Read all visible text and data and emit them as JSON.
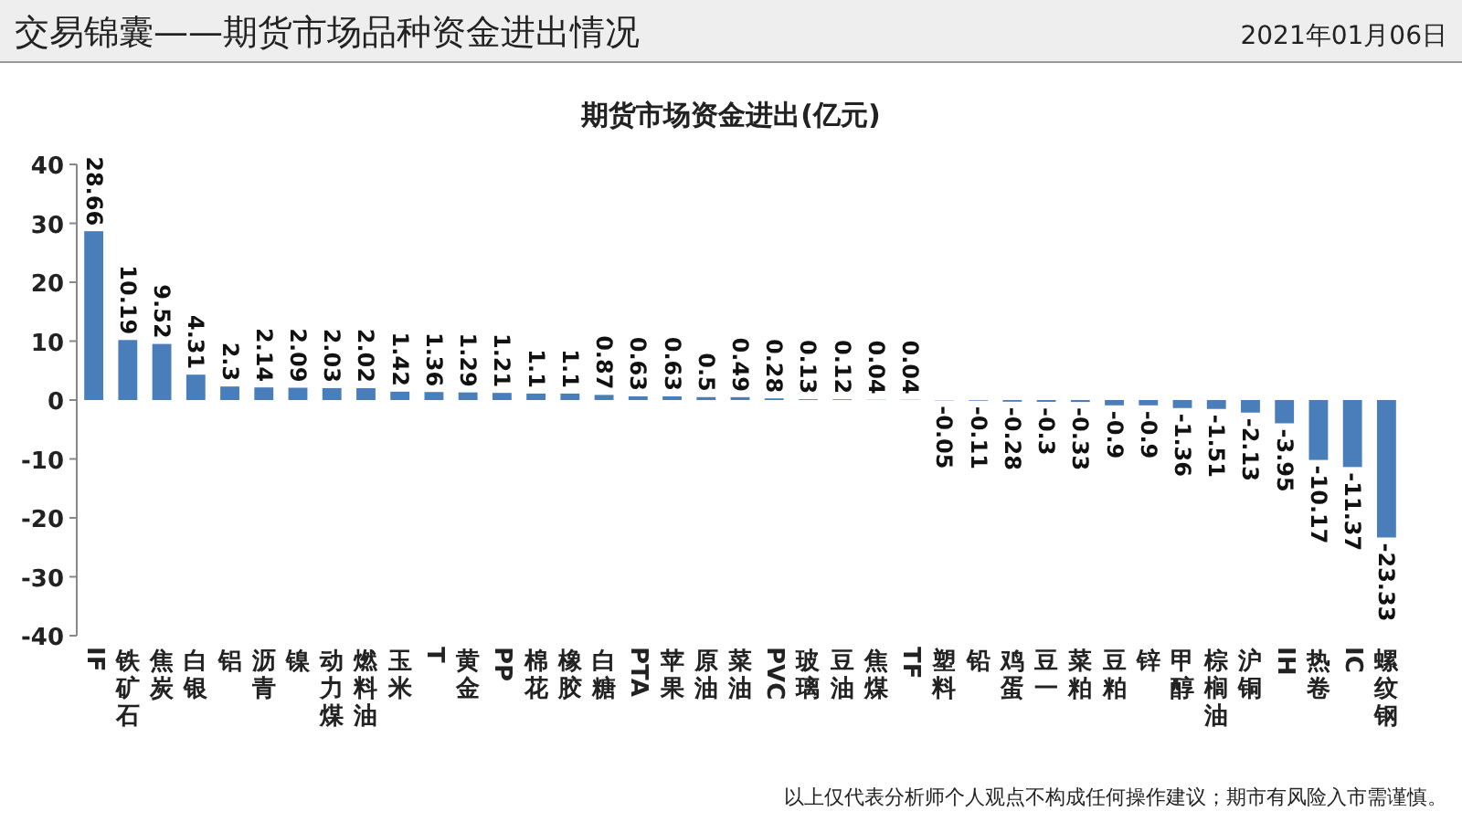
{
  "chart_data": {
    "type": "bar",
    "title": "交易锦囊——期货市场品种资金进出情况",
    "subtitle": "期货市场资金进出(亿元)",
    "annotations": [
      "2021年01月06日",
      "以上仅代表分析师个人观点不构成任何操作建议；期市有风险入市需谨慎。"
    ],
    "categories": [
      "IF",
      "铁矿石",
      "焦炭",
      "白银",
      "铝",
      "沥青",
      "镍",
      "动力煤",
      "燃料油",
      "玉米",
      "T",
      "黄金",
      "PP",
      "棉花",
      "橡胶",
      "白糖",
      "PTA",
      "苹果",
      "原油",
      "菜油",
      "PVC",
      "玻璃",
      "豆油",
      "焦煤",
      "TF",
      "塑料",
      "铅",
      "鸡蛋",
      "豆一",
      "菜粕",
      "豆粕",
      "锌",
      "甲醇",
      "棕榈油",
      "沪铜",
      "IH",
      "热卷",
      "IC",
      "螺纹钢"
    ],
    "values": [
      28.66,
      10.19,
      9.52,
      4.31,
      2.3,
      2.14,
      2.09,
      2.03,
      2.02,
      1.42,
      1.36,
      1.29,
      1.21,
      1.1,
      1.1,
      0.87,
      0.63,
      0.63,
      0.5,
      0.49,
      0.28,
      0.13,
      0.12,
      0.04,
      0.04,
      -0.05,
      -0.11,
      -0.28,
      -0.3,
      -0.33,
      -0.9,
      -0.9,
      -1.36,
      -1.51,
      -2.13,
      -3.95,
      -10.17,
      -11.37,
      -23.33
    ],
    "color": "#4a7ebb",
    "ylim": [
      -40,
      40
    ],
    "yticks": [
      -40,
      -30,
      -20,
      -10,
      0,
      10,
      20,
      30,
      40
    ],
    "data_labels": true
  }
}
